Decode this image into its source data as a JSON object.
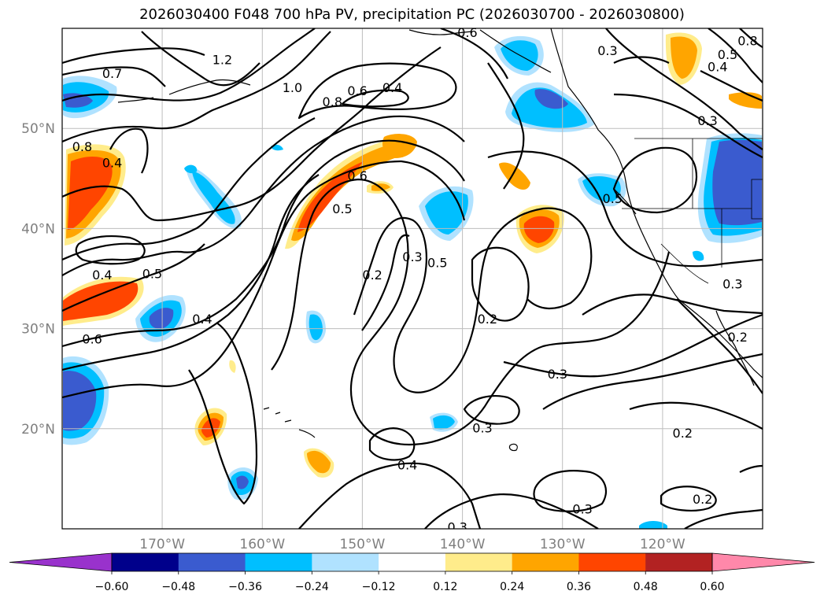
{
  "title": "2026030400 F048 700 hPa PV, precipitation PC (2026030700 - 2026030800)",
  "map_data": {
    "projection": "PlateCarree",
    "extent": {
      "lon_min": -180,
      "lon_max": -110,
      "lat_min": 10,
      "lat_max": 60
    },
    "gridlines": true,
    "lon_labels": [
      {
        "lon": -170,
        "text": "170°W"
      },
      {
        "lon": -160,
        "text": "160°W"
      },
      {
        "lon": -150,
        "text": "150°W"
      },
      {
        "lon": -140,
        "text": "140°W"
      },
      {
        "lon": -130,
        "text": "130°W"
      },
      {
        "lon": -120,
        "text": "120°W"
      }
    ],
    "lat_labels": [
      {
        "lat": 20,
        "text": "20°N"
      },
      {
        "lat": 30,
        "text": "30°N"
      },
      {
        "lat": 40,
        "text": "40°N"
      },
      {
        "lat": 50,
        "text": "50°N"
      }
    ],
    "contour_labels": [
      {
        "text": "1.2",
        "lon": -164,
        "lat": 56.9
      },
      {
        "text": "1.0",
        "lon": -157,
        "lat": 54.1
      },
      {
        "text": "0.8",
        "lon": -153,
        "lat": 52.7
      },
      {
        "text": "0.6",
        "lon": -150.5,
        "lat": 53.8
      },
      {
        "text": "0.4",
        "lon": -147,
        "lat": 54.1
      },
      {
        "text": "0.7",
        "lon": -175,
        "lat": 55.5
      },
      {
        "text": "0.8",
        "lon": -178,
        "lat": 48.2
      },
      {
        "text": "0.4",
        "lon": -175,
        "lat": 46.6
      },
      {
        "text": "0.6",
        "lon": -150.5,
        "lat": 45.3
      },
      {
        "text": "0.5",
        "lon": -152,
        "lat": 42.0
      },
      {
        "text": "0.2",
        "lon": -149,
        "lat": 35.4
      },
      {
        "text": "0.3",
        "lon": -145,
        "lat": 37.2
      },
      {
        "text": "0.5",
        "lon": -142.5,
        "lat": 36.6
      },
      {
        "text": "0.4",
        "lon": -176,
        "lat": 35.4
      },
      {
        "text": "0.5",
        "lon": -171,
        "lat": 35.5
      },
      {
        "text": "0.6",
        "lon": -177,
        "lat": 29.0
      },
      {
        "text": "0.4",
        "lon": -166,
        "lat": 31.0
      },
      {
        "text": "0.2",
        "lon": -137.5,
        "lat": 31.0
      },
      {
        "text": "0.3",
        "lon": -130.5,
        "lat": 25.5
      },
      {
        "text": "0.3",
        "lon": -138,
        "lat": 20.1
      },
      {
        "text": "0.4",
        "lon": -145.5,
        "lat": 16.4
      },
      {
        "text": "0.3",
        "lon": -140.5,
        "lat": 10.2
      },
      {
        "text": "0.3",
        "lon": -128,
        "lat": 12.0
      },
      {
        "text": "0.2",
        "lon": -118,
        "lat": 19.6
      },
      {
        "text": "0.2",
        "lon": -116,
        "lat": 13.0
      },
      {
        "text": "0.5",
        "lon": -125,
        "lat": 43.0
      },
      {
        "text": "0.3",
        "lon": -125.5,
        "lat": 57.8
      },
      {
        "text": "0.3",
        "lon": -115.5,
        "lat": 50.8
      },
      {
        "text": "0.4",
        "lon": -114.5,
        "lat": 56.2
      },
      {
        "text": "0.5",
        "lon": -113.5,
        "lat": 57.4
      },
      {
        "text": "0.8",
        "lon": -111.5,
        "lat": 58.8
      },
      {
        "text": "0.6",
        "lon": -139.5,
        "lat": 59.6
      },
      {
        "text": "0.3",
        "lon": -113,
        "lat": 34.5
      },
      {
        "text": "0.2",
        "lon": -112.5,
        "lat": 29.2
      }
    ],
    "colorbar": {
      "tick_labels": [
        "−0.60",
        "−0.48",
        "−0.36",
        "−0.24",
        "−0.12",
        "0.12",
        "0.24",
        "0.36",
        "0.48",
        "0.60"
      ],
      "colors": [
        "#9932cc",
        "#00008b",
        "#3a5bcf",
        "#00bfff",
        "#b0e2ff",
        "#ffffff",
        "#ffec8b",
        "#ffa500",
        "#ff4500",
        "#b22222",
        "#ff88aa"
      ]
    }
  }
}
